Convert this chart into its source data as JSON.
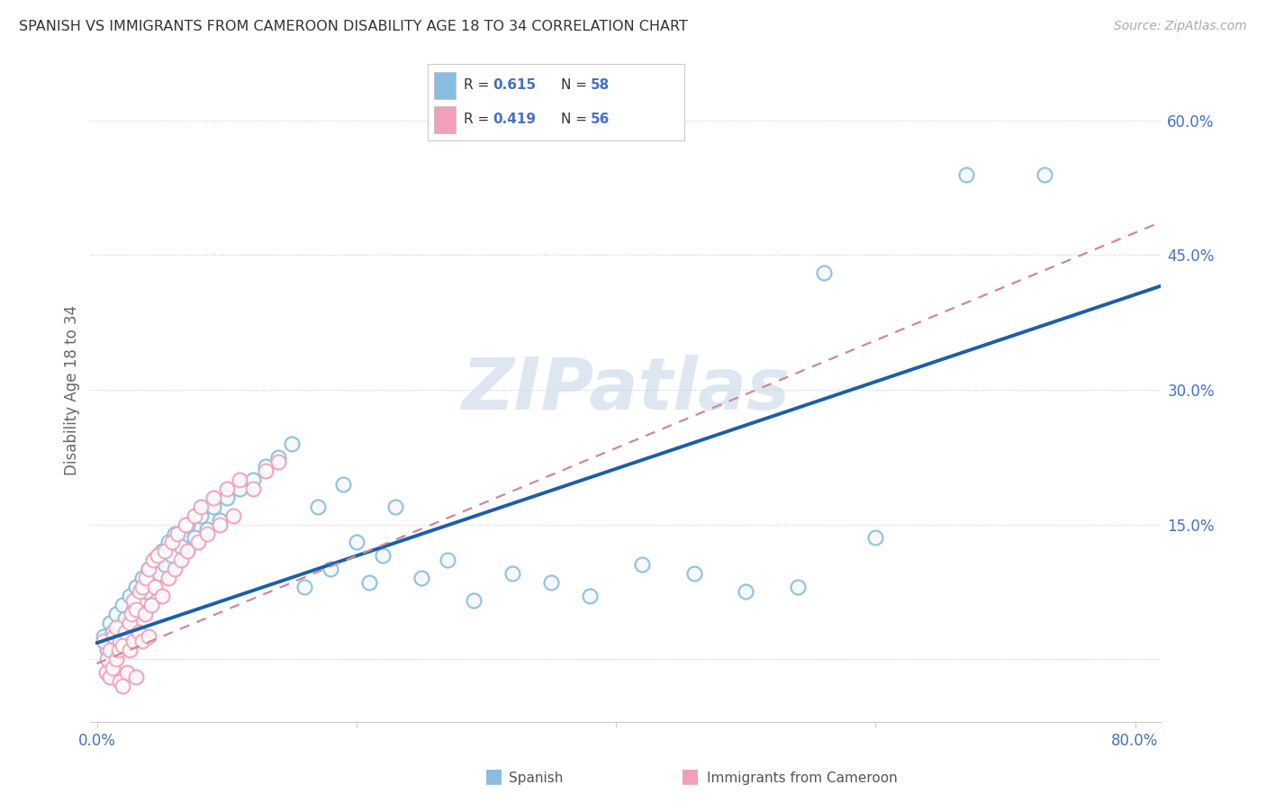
{
  "title": "SPANISH VS IMMIGRANTS FROM CAMEROON DISABILITY AGE 18 TO 34 CORRELATION CHART",
  "source": "Source: ZipAtlas.com",
  "ylabel": "Disability Age 18 to 34",
  "xlim": [
    -0.005,
    0.82
  ],
  "ylim": [
    -0.07,
    0.67
  ],
  "yticks": [
    0.0,
    0.15,
    0.3,
    0.45,
    0.6
  ],
  "xticks": [
    0.0,
    0.2,
    0.4,
    0.6,
    0.8
  ],
  "ytick_labels": [
    "",
    "15.0%",
    "30.0%",
    "45.0%",
    "60.0%"
  ],
  "xtick_labels": [
    "0.0%",
    "",
    "",
    "",
    "80.0%"
  ],
  "r1": "0.615",
  "n1": "58",
  "r2": "0.419",
  "n2": "56",
  "color_blue": "#89bde0",
  "color_pink": "#f0a0b8",
  "color_line_blue": "#1a5fa8",
  "color_line_pink": "#cc8899",
  "tick_color": "#4472c4",
  "watermark_color": "#c8d8e8",
  "blue_line_intercept": 0.018,
  "blue_line_slope": 0.485,
  "pink_line_intercept": -0.005,
  "pink_line_slope": 0.6,
  "spanish_x": [
    0.005,
    0.008,
    0.01,
    0.012,
    0.015,
    0.018,
    0.02,
    0.022,
    0.025,
    0.028,
    0.03,
    0.032,
    0.035,
    0.038,
    0.04,
    0.042,
    0.045,
    0.048,
    0.05,
    0.052,
    0.055,
    0.058,
    0.06,
    0.065,
    0.07,
    0.075,
    0.08,
    0.085,
    0.09,
    0.095,
    0.1,
    0.11,
    0.12,
    0.13,
    0.14,
    0.15,
    0.16,
    0.17,
    0.18,
    0.19,
    0.2,
    0.21,
    0.22,
    0.23,
    0.25,
    0.27,
    0.29,
    0.32,
    0.35,
    0.38,
    0.42,
    0.46,
    0.5,
    0.54,
    0.56,
    0.6,
    0.67,
    0.73
  ],
  "spanish_y": [
    0.025,
    0.01,
    0.04,
    0.03,
    0.05,
    0.035,
    0.06,
    0.045,
    0.07,
    0.055,
    0.08,
    0.065,
    0.09,
    0.075,
    0.1,
    0.085,
    0.11,
    0.095,
    0.12,
    0.105,
    0.13,
    0.115,
    0.14,
    0.125,
    0.15,
    0.135,
    0.16,
    0.145,
    0.17,
    0.155,
    0.18,
    0.19,
    0.2,
    0.215,
    0.225,
    0.24,
    0.08,
    0.17,
    0.1,
    0.195,
    0.13,
    0.085,
    0.115,
    0.17,
    0.09,
    0.11,
    0.065,
    0.095,
    0.085,
    0.07,
    0.105,
    0.095,
    0.075,
    0.08,
    0.43,
    0.135,
    0.54,
    0.54
  ],
  "cameroon_x": [
    0.005,
    0.007,
    0.008,
    0.01,
    0.01,
    0.012,
    0.013,
    0.015,
    0.015,
    0.017,
    0.018,
    0.018,
    0.02,
    0.02,
    0.022,
    0.023,
    0.025,
    0.025,
    0.027,
    0.028,
    0.028,
    0.03,
    0.03,
    0.032,
    0.033,
    0.035,
    0.035,
    0.037,
    0.038,
    0.04,
    0.04,
    0.042,
    0.043,
    0.045,
    0.047,
    0.05,
    0.052,
    0.055,
    0.058,
    0.06,
    0.062,
    0.065,
    0.068,
    0.07,
    0.075,
    0.078,
    0.08,
    0.085,
    0.09,
    0.095,
    0.1,
    0.105,
    0.11,
    0.12,
    0.13,
    0.14
  ],
  "cameroon_y": [
    0.02,
    -0.015,
    0.0,
    -0.02,
    0.01,
    -0.01,
    0.025,
    0.0,
    0.035,
    0.01,
    -0.025,
    0.02,
    -0.03,
    0.015,
    0.03,
    -0.015,
    0.04,
    0.01,
    0.05,
    0.02,
    0.065,
    -0.02,
    0.055,
    0.03,
    0.075,
    0.02,
    0.08,
    0.05,
    0.09,
    0.025,
    0.1,
    0.06,
    0.11,
    0.08,
    0.115,
    0.07,
    0.12,
    0.09,
    0.13,
    0.1,
    0.14,
    0.11,
    0.15,
    0.12,
    0.16,
    0.13,
    0.17,
    0.14,
    0.18,
    0.15,
    0.19,
    0.16,
    0.2,
    0.19,
    0.21,
    0.22
  ]
}
